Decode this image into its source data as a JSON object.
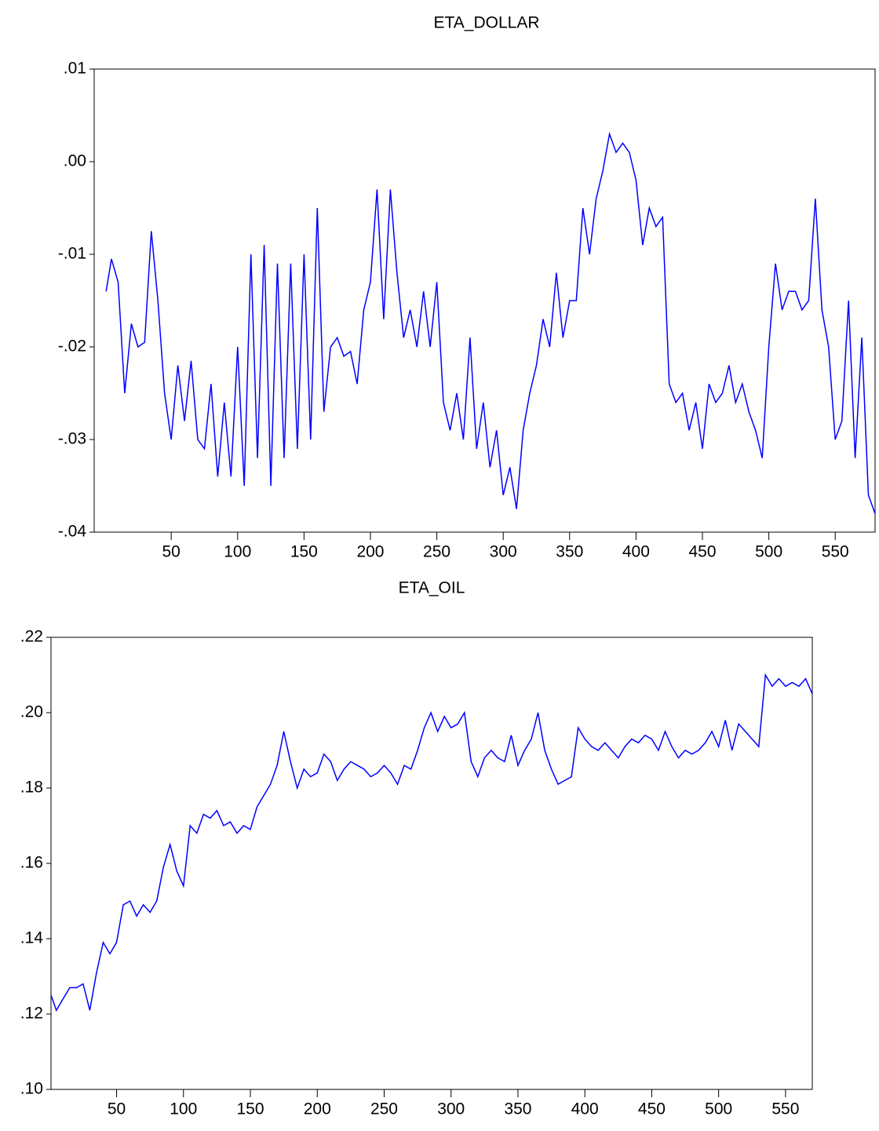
{
  "chart_data": [
    {
      "type": "line",
      "title": "ETA_DOLLAR",
      "color": "#0000ff",
      "x": [
        1,
        5,
        10,
        15,
        20,
        25,
        30,
        35,
        40,
        45,
        50,
        55,
        60,
        65,
        70,
        75,
        80,
        85,
        90,
        95,
        100,
        105,
        110,
        115,
        120,
        125,
        130,
        135,
        140,
        145,
        150,
        155,
        160,
        165,
        170,
        175,
        180,
        185,
        190,
        195,
        200,
        205,
        210,
        215,
        220,
        225,
        230,
        235,
        240,
        245,
        250,
        255,
        260,
        265,
        270,
        275,
        280,
        285,
        290,
        295,
        300,
        305,
        310,
        315,
        320,
        325,
        330,
        335,
        340,
        345,
        350,
        355,
        360,
        365,
        370,
        375,
        380,
        385,
        390,
        395,
        400,
        405,
        410,
        415,
        420,
        425,
        430,
        435,
        440,
        445,
        450,
        455,
        460,
        465,
        470,
        475,
        480,
        485,
        490,
        495,
        500,
        505,
        510,
        515,
        520,
        525,
        530,
        535,
        540,
        545,
        550,
        555,
        560,
        565,
        570,
        575,
        580
      ],
      "values": [
        -0.014,
        -0.0105,
        -0.013,
        -0.025,
        -0.0175,
        -0.02,
        -0.0195,
        -0.0075,
        -0.015,
        -0.025,
        -0.03,
        -0.022,
        -0.028,
        -0.0215,
        -0.03,
        -0.031,
        -0.024,
        -0.034,
        -0.026,
        -0.034,
        -0.02,
        -0.035,
        -0.01,
        -0.032,
        -0.009,
        -0.035,
        -0.011,
        -0.032,
        -0.011,
        -0.031,
        -0.01,
        -0.03,
        -0.005,
        -0.027,
        -0.02,
        -0.019,
        -0.021,
        -0.0205,
        -0.024,
        -0.016,
        -0.013,
        -0.003,
        -0.017,
        -0.003,
        -0.012,
        -0.019,
        -0.016,
        -0.02,
        -0.014,
        -0.02,
        -0.013,
        -0.026,
        -0.029,
        -0.025,
        -0.03,
        -0.019,
        -0.031,
        -0.026,
        -0.033,
        -0.029,
        -0.036,
        -0.033,
        -0.0375,
        -0.029,
        -0.025,
        -0.022,
        -0.017,
        -0.02,
        -0.012,
        -0.019,
        -0.015,
        -0.015,
        -0.005,
        -0.01,
        -0.004,
        -0.001,
        0.003,
        0.001,
        0.002,
        0.001,
        -0.002,
        -0.009,
        -0.005,
        -0.007,
        -0.006,
        -0.024,
        -0.026,
        -0.025,
        -0.029,
        -0.026,
        -0.031,
        -0.024,
        -0.026,
        -0.025,
        -0.022,
        -0.026,
        -0.024,
        -0.027,
        -0.029,
        -0.032,
        -0.02,
        -0.011,
        -0.016,
        -0.014,
        -0.014,
        -0.016,
        -0.015,
        -0.004,
        -0.016,
        -0.02,
        -0.03,
        -0.028,
        -0.015,
        -0.032,
        -0.019,
        -0.036,
        -0.038
      ],
      "xlim": [
        -8,
        580
      ],
      "ylim": [
        -0.04,
        0.01
      ],
      "xticks": [
        50,
        100,
        150,
        200,
        250,
        300,
        350,
        400,
        450,
        500,
        550
      ],
      "yticks": [
        {
          "value": -0.04,
          "label": "-.04"
        },
        {
          "value": -0.03,
          "label": "-.03"
        },
        {
          "value": -0.02,
          "label": "-.02"
        },
        {
          "value": -0.01,
          "label": "-.01"
        },
        {
          "value": 0,
          "label": ".00"
        },
        {
          "value": 0.01,
          "label": ".01"
        }
      ]
    },
    {
      "type": "line",
      "title": "ETA_OIL",
      "color": "#0000ff",
      "x": [
        1,
        5,
        10,
        15,
        20,
        25,
        30,
        35,
        40,
        45,
        50,
        55,
        60,
        65,
        70,
        75,
        80,
        85,
        90,
        95,
        100,
        105,
        110,
        115,
        120,
        125,
        130,
        135,
        140,
        145,
        150,
        155,
        160,
        165,
        170,
        175,
        180,
        185,
        190,
        195,
        200,
        205,
        210,
        215,
        220,
        225,
        230,
        235,
        240,
        245,
        250,
        255,
        260,
        265,
        270,
        275,
        280,
        285,
        290,
        295,
        300,
        305,
        310,
        315,
        320,
        325,
        330,
        335,
        340,
        345,
        350,
        355,
        360,
        365,
        370,
        375,
        380,
        385,
        390,
        395,
        400,
        405,
        410,
        415,
        420,
        425,
        430,
        435,
        440,
        445,
        450,
        455,
        460,
        465,
        470,
        475,
        480,
        485,
        490,
        495,
        500,
        505,
        510,
        515,
        520,
        525,
        530,
        535,
        540,
        545,
        550,
        555,
        560,
        565,
        570
      ],
      "values": [
        0.125,
        0.121,
        0.124,
        0.127,
        0.127,
        0.128,
        0.121,
        0.131,
        0.139,
        0.136,
        0.139,
        0.149,
        0.15,
        0.146,
        0.149,
        0.147,
        0.15,
        0.159,
        0.165,
        0.158,
        0.154,
        0.17,
        0.168,
        0.173,
        0.172,
        0.174,
        0.17,
        0.171,
        0.168,
        0.17,
        0.169,
        0.175,
        0.178,
        0.181,
        0.186,
        0.195,
        0.187,
        0.18,
        0.185,
        0.183,
        0.184,
        0.189,
        0.187,
        0.182,
        0.185,
        0.187,
        0.186,
        0.185,
        0.183,
        0.184,
        0.186,
        0.184,
        0.181,
        0.186,
        0.185,
        0.19,
        0.196,
        0.2,
        0.195,
        0.199,
        0.196,
        0.197,
        0.2,
        0.187,
        0.183,
        0.188,
        0.19,
        0.188,
        0.187,
        0.194,
        0.186,
        0.19,
        0.193,
        0.2,
        0.19,
        0.185,
        0.181,
        0.182,
        0.183,
        0.196,
        0.193,
        0.191,
        0.19,
        0.192,
        0.19,
        0.188,
        0.191,
        0.193,
        0.192,
        0.194,
        0.193,
        0.19,
        0.195,
        0.191,
        0.188,
        0.19,
        0.189,
        0.19,
        0.192,
        0.195,
        0.191,
        0.198,
        0.19,
        0.197,
        0.195,
        0.193,
        0.191,
        0.21,
        0.207,
        0.209,
        0.207,
        0.208,
        0.207,
        0.209,
        0.205
      ],
      "xlim": [
        1,
        570
      ],
      "ylim": [
        0.1,
        0.22
      ],
      "xticks": [
        50,
        100,
        150,
        200,
        250,
        300,
        350,
        400,
        450,
        500,
        550
      ],
      "yticks": [
        {
          "value": 0.1,
          "label": ".10"
        },
        {
          "value": 0.12,
          "label": ".12"
        },
        {
          "value": 0.14,
          "label": ".14"
        },
        {
          "value": 0.16,
          "label": ".16"
        },
        {
          "value": 0.18,
          "label": ".18"
        },
        {
          "value": 0.2,
          "label": ".20"
        },
        {
          "value": 0.22,
          "label": ".22"
        }
      ]
    }
  ]
}
